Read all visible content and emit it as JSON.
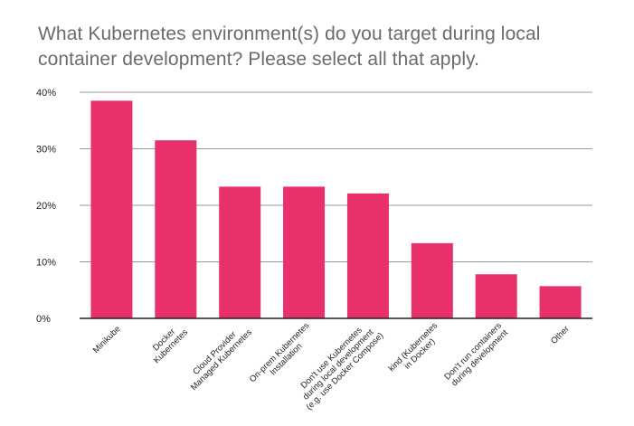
{
  "title_lines": [
    "What Kubernetes environment(s) do you target during local",
    "container development? Please select all that apply."
  ],
  "colors": {
    "bar": "#e8306a",
    "grid": "#9a9a9a",
    "axis": "#222222",
    "title": "#6b6b6b"
  },
  "chart_data": {
    "type": "bar",
    "title": "What Kubernetes environment(s) do you target during local container development? Please select all that apply.",
    "xlabel": "",
    "ylabel": "",
    "ylim": [
      0,
      40
    ],
    "y_ticks": [
      "0%",
      "10%",
      "20%",
      "30%",
      "40%"
    ],
    "grid": true,
    "categories": [
      [
        "Minikube"
      ],
      [
        "Docker",
        "Kubernetes"
      ],
      [
        "Cloud Provider",
        "Managed Kubernetes"
      ],
      [
        "On-prem Kubernetes",
        "Installation"
      ],
      [
        "Don't use Kubernetes",
        "during local development",
        "(e.g. use Docker Compose)"
      ],
      [
        "kind (Kubernetes",
        "in Docker)"
      ],
      [
        "Don't run containers",
        "during development"
      ],
      [
        "Other"
      ]
    ],
    "values": [
      38.5,
      31.5,
      23.3,
      23.3,
      22.1,
      13.3,
      7.8,
      5.7
    ]
  }
}
